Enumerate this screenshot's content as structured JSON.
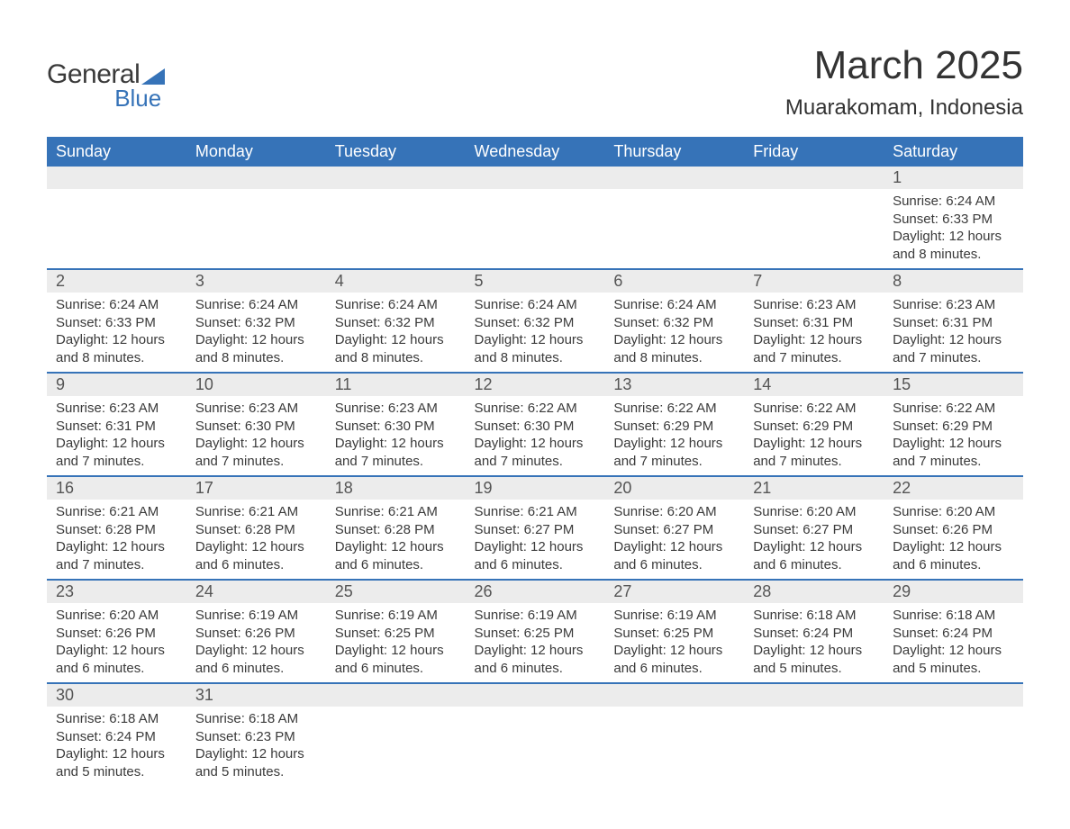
{
  "logo": {
    "line1": "General",
    "line2": "Blue"
  },
  "header": {
    "title": "March 2025",
    "subtitle": "Muarakomam, Indonesia"
  },
  "colors": {
    "accent": "#3673b8",
    "header_bg": "#3673b8",
    "header_text": "#ffffff",
    "daynum_bg": "#ececec",
    "text": "#3a3a3a",
    "page_bg": "#ffffff"
  },
  "day_labels": [
    "Sunday",
    "Monday",
    "Tuesday",
    "Wednesday",
    "Thursday",
    "Friday",
    "Saturday"
  ],
  "first_weekday_index": 6,
  "days": [
    {
      "n": 1,
      "sunrise": "6:24 AM",
      "sunset": "6:33 PM",
      "daylight": "12 hours and 8 minutes."
    },
    {
      "n": 2,
      "sunrise": "6:24 AM",
      "sunset": "6:33 PM",
      "daylight": "12 hours and 8 minutes."
    },
    {
      "n": 3,
      "sunrise": "6:24 AM",
      "sunset": "6:32 PM",
      "daylight": "12 hours and 8 minutes."
    },
    {
      "n": 4,
      "sunrise": "6:24 AM",
      "sunset": "6:32 PM",
      "daylight": "12 hours and 8 minutes."
    },
    {
      "n": 5,
      "sunrise": "6:24 AM",
      "sunset": "6:32 PM",
      "daylight": "12 hours and 8 minutes."
    },
    {
      "n": 6,
      "sunrise": "6:24 AM",
      "sunset": "6:32 PM",
      "daylight": "12 hours and 8 minutes."
    },
    {
      "n": 7,
      "sunrise": "6:23 AM",
      "sunset": "6:31 PM",
      "daylight": "12 hours and 7 minutes."
    },
    {
      "n": 8,
      "sunrise": "6:23 AM",
      "sunset": "6:31 PM",
      "daylight": "12 hours and 7 minutes."
    },
    {
      "n": 9,
      "sunrise": "6:23 AM",
      "sunset": "6:31 PM",
      "daylight": "12 hours and 7 minutes."
    },
    {
      "n": 10,
      "sunrise": "6:23 AM",
      "sunset": "6:30 PM",
      "daylight": "12 hours and 7 minutes."
    },
    {
      "n": 11,
      "sunrise": "6:23 AM",
      "sunset": "6:30 PM",
      "daylight": "12 hours and 7 minutes."
    },
    {
      "n": 12,
      "sunrise": "6:22 AM",
      "sunset": "6:30 PM",
      "daylight": "12 hours and 7 minutes."
    },
    {
      "n": 13,
      "sunrise": "6:22 AM",
      "sunset": "6:29 PM",
      "daylight": "12 hours and 7 minutes."
    },
    {
      "n": 14,
      "sunrise": "6:22 AM",
      "sunset": "6:29 PM",
      "daylight": "12 hours and 7 minutes."
    },
    {
      "n": 15,
      "sunrise": "6:22 AM",
      "sunset": "6:29 PM",
      "daylight": "12 hours and 7 minutes."
    },
    {
      "n": 16,
      "sunrise": "6:21 AM",
      "sunset": "6:28 PM",
      "daylight": "12 hours and 7 minutes."
    },
    {
      "n": 17,
      "sunrise": "6:21 AM",
      "sunset": "6:28 PM",
      "daylight": "12 hours and 6 minutes."
    },
    {
      "n": 18,
      "sunrise": "6:21 AM",
      "sunset": "6:28 PM",
      "daylight": "12 hours and 6 minutes."
    },
    {
      "n": 19,
      "sunrise": "6:21 AM",
      "sunset": "6:27 PM",
      "daylight": "12 hours and 6 minutes."
    },
    {
      "n": 20,
      "sunrise": "6:20 AM",
      "sunset": "6:27 PM",
      "daylight": "12 hours and 6 minutes."
    },
    {
      "n": 21,
      "sunrise": "6:20 AM",
      "sunset": "6:27 PM",
      "daylight": "12 hours and 6 minutes."
    },
    {
      "n": 22,
      "sunrise": "6:20 AM",
      "sunset": "6:26 PM",
      "daylight": "12 hours and 6 minutes."
    },
    {
      "n": 23,
      "sunrise": "6:20 AM",
      "sunset": "6:26 PM",
      "daylight": "12 hours and 6 minutes."
    },
    {
      "n": 24,
      "sunrise": "6:19 AM",
      "sunset": "6:26 PM",
      "daylight": "12 hours and 6 minutes."
    },
    {
      "n": 25,
      "sunrise": "6:19 AM",
      "sunset": "6:25 PM",
      "daylight": "12 hours and 6 minutes."
    },
    {
      "n": 26,
      "sunrise": "6:19 AM",
      "sunset": "6:25 PM",
      "daylight": "12 hours and 6 minutes."
    },
    {
      "n": 27,
      "sunrise": "6:19 AM",
      "sunset": "6:25 PM",
      "daylight": "12 hours and 6 minutes."
    },
    {
      "n": 28,
      "sunrise": "6:18 AM",
      "sunset": "6:24 PM",
      "daylight": "12 hours and 5 minutes."
    },
    {
      "n": 29,
      "sunrise": "6:18 AM",
      "sunset": "6:24 PM",
      "daylight": "12 hours and 5 minutes."
    },
    {
      "n": 30,
      "sunrise": "6:18 AM",
      "sunset": "6:24 PM",
      "daylight": "12 hours and 5 minutes."
    },
    {
      "n": 31,
      "sunrise": "6:18 AM",
      "sunset": "6:23 PM",
      "daylight": "12 hours and 5 minutes."
    }
  ],
  "field_labels": {
    "sunrise": "Sunrise: ",
    "sunset": "Sunset: ",
    "daylight": "Daylight: "
  }
}
